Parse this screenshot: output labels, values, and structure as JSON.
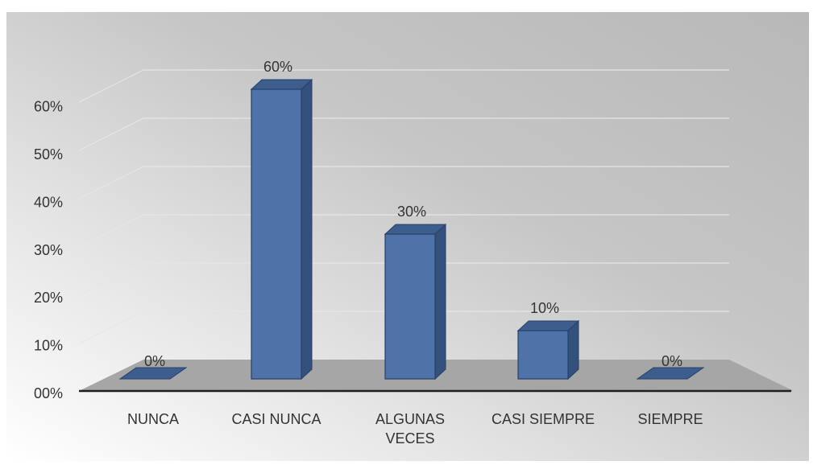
{
  "chart_data": {
    "type": "bar",
    "title": "",
    "xlabel": "",
    "ylabel": "",
    "categories": [
      "NUNCA",
      "CASI NUNCA",
      "ALGUNAS VECES",
      "CASI SIEMPRE",
      "SIEMPRE"
    ],
    "category_lines": [
      [
        "NUNCA"
      ],
      [
        "CASI NUNCA"
      ],
      [
        "ALGUNAS",
        "VECES"
      ],
      [
        "CASI SIEMPRE"
      ],
      [
        "SIEMPRE"
      ]
    ],
    "values": [
      0,
      60,
      30,
      10,
      0
    ],
    "data_labels": [
      "0%",
      "60%",
      "30%",
      "10%",
      "0%"
    ],
    "ylim": [
      0,
      60
    ],
    "y_ticks": [
      0,
      10,
      20,
      30,
      40,
      50,
      60
    ],
    "y_tick_labels": [
      "00%",
      "10%",
      "20%",
      "30%",
      "40%",
      "50%",
      "60%"
    ],
    "grid": true,
    "style": "3d-column",
    "colors": {
      "bar_front": "#4f73a8",
      "bar_side": "#34507c",
      "bar_top": "#3d5d8d",
      "bar_edge": "#27406a",
      "floor": "#a6a6a6",
      "axis_line": "#1f1f1f",
      "gridline": "#e6e6e6",
      "text": "#333333"
    }
  }
}
